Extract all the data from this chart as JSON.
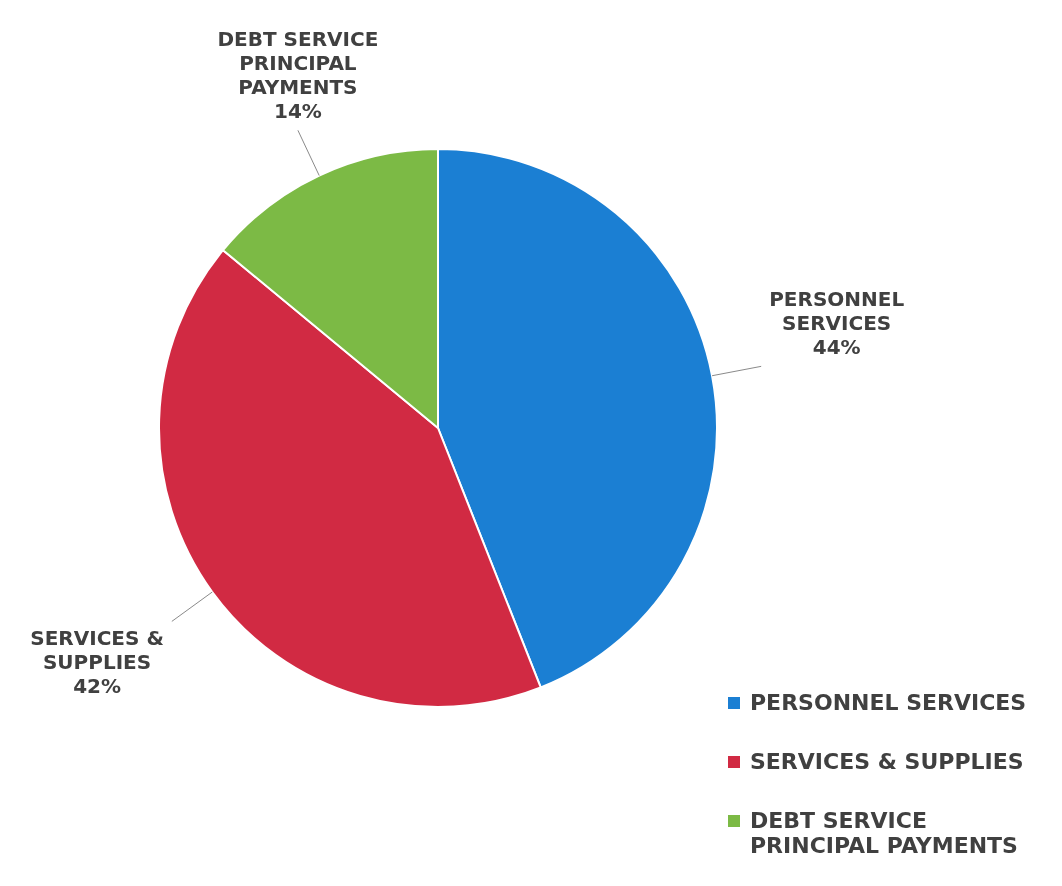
{
  "chart_data": {
    "type": "pie",
    "categories": [
      "PERSONNEL SERVICES",
      "SERVICES & SUPPLIES",
      "DEBT SERVICE PRINCIPAL PAYMENTS"
    ],
    "values": [
      44,
      42,
      14
    ],
    "value_labels": [
      "44%",
      "42%",
      "14%"
    ],
    "colors": [
      "#1b7fd3",
      "#d12a43",
      "#7cba45"
    ],
    "legend": "bottom right"
  }
}
